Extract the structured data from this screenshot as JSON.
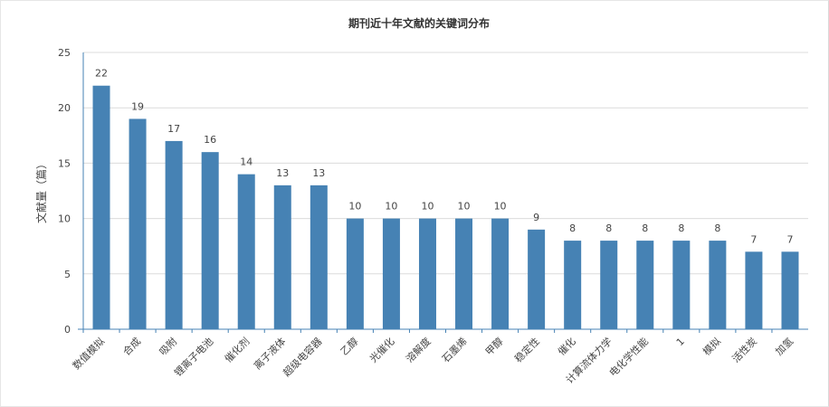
{
  "chart_data": {
    "type": "bar",
    "title": "期刊近十年文献的关键词分布",
    "xlabel": "",
    "ylabel": "文献量（篇）",
    "ylim": [
      0,
      25
    ],
    "yticks": [
      0,
      5,
      10,
      15,
      20,
      25
    ],
    "grid": true,
    "bar_color": "#4682b4",
    "categories": [
      "数值模拟",
      "合成",
      "吸附",
      "锂离子电池",
      "催化剂",
      "离子液体",
      "超级电容器",
      "乙醇",
      "光催化",
      "溶解度",
      "石墨烯",
      "甲醇",
      "稳定性",
      "催化",
      "计算流体力学",
      "电化学性能",
      "1",
      "模拟",
      "活性炭",
      "加氢"
    ],
    "values": [
      22,
      19,
      17,
      16,
      14,
      13,
      13,
      10,
      10,
      10,
      10,
      10,
      9,
      8,
      8,
      8,
      8,
      8,
      7,
      7
    ]
  }
}
